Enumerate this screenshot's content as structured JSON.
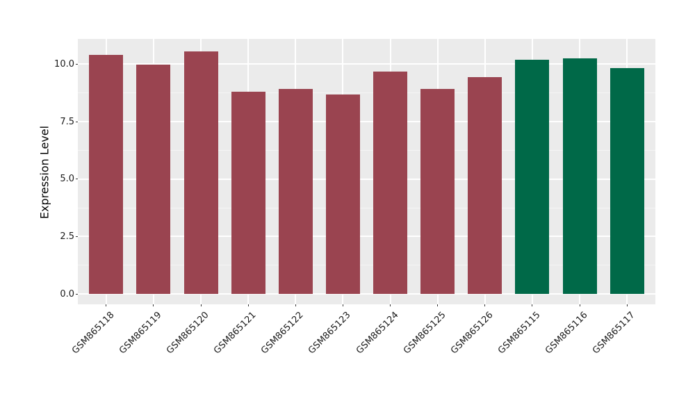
{
  "chart_data": {
    "type": "bar",
    "title": "",
    "xlabel": "",
    "ylabel": "Expression Level",
    "categories": [
      "GSM865118",
      "GSM865119",
      "GSM865120",
      "GSM865121",
      "GSM865122",
      "GSM865123",
      "GSM865124",
      "GSM865125",
      "GSM865126",
      "GSM865115",
      "GSM865116",
      "GSM865117"
    ],
    "values": [
      10.39,
      9.99,
      10.55,
      8.79,
      8.92,
      8.68,
      9.68,
      8.92,
      9.44,
      10.19,
      10.24,
      9.83
    ],
    "bar_colors": [
      "#9A4450",
      "#9A4450",
      "#9A4450",
      "#9A4450",
      "#9A4450",
      "#9A4450",
      "#9A4450",
      "#9A4450",
      "#9A4450",
      "#006948",
      "#006948",
      "#006948"
    ],
    "group_colors": {
      "group1": "#9A4450",
      "group2": "#006948"
    },
    "y_ticks": [
      0.0,
      2.5,
      5.0,
      7.5,
      10.0
    ],
    "y_tick_labels": [
      "0.0",
      "2.5",
      "5.0",
      "7.5",
      "10.0"
    ],
    "y_minor_ticks": [
      1.25,
      3.75,
      6.25,
      8.75
    ],
    "ylim": [
      -0.45,
      11.1
    ],
    "x_tick_rotation": 45,
    "grid": true,
    "legend": "none",
    "panel_bg": "#EBEBEB",
    "major_grid_color": "#FFFFFF",
    "minor_grid_color": "#F5F5F5",
    "tick_color": "#333333",
    "axis_text_color": "#1A1A1A"
  }
}
